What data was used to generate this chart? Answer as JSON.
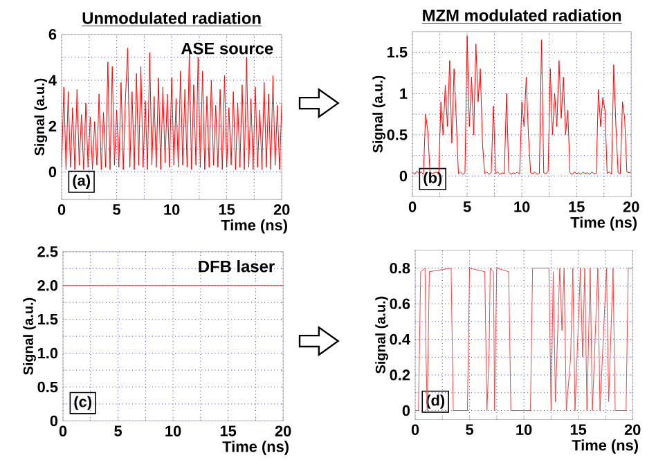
{
  "chart_data": [
    {
      "type": "line",
      "title": "Unmodulated radiation",
      "xlabel": "Time (ns)",
      "ylabel": "Signal (a.u.)",
      "annotations": [
        "ASE source",
        "(a)"
      ],
      "x": [
        0,
        0.2,
        0.4,
        0.6,
        0.8,
        1,
        1.2,
        1.4,
        1.6,
        1.8,
        2,
        2.2,
        2.4,
        2.6,
        2.8,
        3,
        3.2,
        3.4,
        3.6,
        3.8,
        4,
        4.2,
        4.4,
        4.6,
        4.8,
        5,
        5.2,
        5.4,
        5.6,
        5.8,
        6,
        6.2,
        6.4,
        6.6,
        6.8,
        7,
        7.2,
        7.4,
        7.6,
        7.8,
        8,
        8.2,
        8.4,
        8.6,
        8.8,
        9,
        9.2,
        9.4,
        9.6,
        9.8,
        10,
        10.2,
        10.4,
        10.6,
        10.8,
        11,
        11.2,
        11.4,
        11.6,
        11.8,
        12,
        12.2,
        12.4,
        12.6,
        12.8,
        13,
        13.2,
        13.4,
        13.6,
        13.8,
        14,
        14.2,
        14.4,
        14.6,
        14.8,
        15,
        15.2,
        15.4,
        15.6,
        15.8,
        16,
        16.2,
        16.4,
        16.6,
        16.8,
        17,
        17.2,
        17.4,
        17.6,
        17.8,
        18,
        18.2,
        18.4,
        18.6,
        18.8,
        19,
        19.2,
        19.4,
        19.6,
        19.8,
        20
      ],
      "series": [
        {
          "color": "#ff0000",
          "values": [
            0.2,
            3.7,
            0.1,
            3.5,
            0.2,
            2.8,
            0.1,
            3.6,
            0.3,
            2.5,
            0.1,
            3.0,
            0.2,
            2.4,
            0.1,
            2.2,
            0.3,
            3.4,
            0.1,
            2.6,
            0.2,
            4.8,
            0.1,
            4.6,
            0.3,
            2.7,
            0.2,
            3.9,
            0.1,
            3.2,
            5.4,
            0.2,
            3.5,
            0.1,
            4.3,
            0.3,
            4.6,
            0.2,
            3.1,
            0.1,
            5.2,
            0.3,
            3.3,
            0.2,
            4.1,
            0.1,
            3.7,
            0.4,
            3.4,
            0.2,
            4.1,
            0.3,
            3.2,
            0.2,
            4.4,
            0.3,
            3.6,
            0.2,
            5.2,
            0.1,
            3.8,
            0.3,
            5.0,
            0.2,
            4.4,
            0.1,
            3.3,
            0.2,
            4.0,
            0.3,
            2.9,
            0.2,
            3.6,
            0.1,
            4.2,
            0.2,
            2.8,
            0.3,
            3.5,
            0.1,
            3.0,
            0.2,
            3.8,
            0.1,
            5.0,
            0.2,
            3.2,
            0.1,
            3.7,
            0.2,
            2.7,
            0.1,
            3.9,
            0.2,
            3.4,
            0.1,
            4.2,
            0.3,
            2.9,
            0.1,
            3.0
          ]
        }
      ],
      "xlim": [
        0,
        20
      ],
      "ylim": [
        -1.2,
        6
      ],
      "xticks": [
        0,
        {
          "value": 2.5,
          "label": null
        },
        5,
        {
          "value": 7.5,
          "label": null
        },
        10,
        {
          "value": 12.5,
          "label": null
        },
        15,
        {
          "value": 17.5,
          "label": null
        },
        20
      ],
      "yticks": [
        0,
        {
          "value": 1,
          "label": null
        },
        2,
        {
          "value": 3,
          "label": null
        },
        4,
        {
          "value": 5,
          "label": null
        },
        6
      ],
      "grid": true
    },
    {
      "type": "line",
      "title": "MZM modulated radiation",
      "xlabel": "Time (ns)",
      "ylabel": "Signal (a.u.)",
      "annotations": [
        "(b)"
      ],
      "x": [
        0,
        0.2,
        0.4,
        0.6,
        0.8,
        1,
        1.2,
        1.4,
        1.6,
        1.8,
        2,
        2.2,
        2.4,
        2.6,
        2.8,
        3,
        3.2,
        3.4,
        3.6,
        3.8,
        4,
        4.2,
        4.4,
        4.6,
        4.8,
        5,
        5.2,
        5.4,
        5.6,
        5.8,
        6,
        6.2,
        6.4,
        6.6,
        6.8,
        7,
        7.2,
        7.4,
        7.6,
        7.8,
        8,
        8.2,
        8.4,
        8.6,
        8.8,
        9,
        9.2,
        9.4,
        9.6,
        9.8,
        10,
        10.2,
        10.4,
        10.6,
        10.8,
        11,
        11.2,
        11.4,
        11.6,
        11.8,
        12,
        12.2,
        12.4,
        12.6,
        12.8,
        13,
        13.2,
        13.4,
        13.6,
        13.8,
        14,
        14.2,
        14.4,
        14.6,
        14.8,
        15,
        15.2,
        15.4,
        15.6,
        15.8,
        16,
        16.2,
        16.4,
        16.6,
        16.8,
        17,
        17.2,
        17.4,
        17.6,
        17.8,
        18,
        18.2,
        18.4,
        18.6,
        18.8,
        19,
        19.2,
        19.4,
        19.6,
        19.8,
        20
      ],
      "series": [
        {
          "color": "#ff0000",
          "values": [
            0.05,
            0.02,
            0.06,
            0.03,
            0.05,
            0.02,
            0.75,
            0.55,
            0.05,
            0.03,
            0.04,
            0.05,
            0.02,
            0.9,
            0.5,
            1.1,
            0.6,
            1.4,
            0.4,
            1.3,
            0.7,
            0.03,
            0.05,
            0.02,
            0.04,
            1.7,
            0.6,
            1.2,
            0.5,
            1.6,
            0.9,
            1.3,
            0.4,
            0.03,
            0.05,
            0.02,
            0.04,
            0.85,
            0.03,
            0.05,
            0.02,
            0.04,
            0.03,
            1.0,
            0.05,
            0.02,
            0.04,
            0.03,
            0.05,
            0.02,
            0.9,
            0.6,
            1.2,
            0.5,
            0.04,
            0.03,
            0.05,
            0.02,
            0.03,
            1.65,
            0.04,
            0.03,
            0.05,
            1.3,
            0.5,
            1.0,
            0.6,
            1.4,
            0.7,
            1.2,
            0.5,
            0.8,
            0.04,
            0.02,
            0.05,
            0.03,
            0.04,
            0.02,
            0.05,
            0.03,
            0.04,
            0.02,
            0.05,
            0.03,
            0.03,
            1.05,
            0.6,
            0.95,
            0.8,
            0.03,
            0.05,
            0.02,
            1.35,
            0.6,
            0.04,
            0.03,
            0.9,
            0.7,
            0.05,
            0.04,
            0.05
          ]
        }
      ],
      "xlim": [
        0,
        20
      ],
      "ylim": [
        -0.25,
        1.75
      ],
      "xticks": [
        0,
        {
          "value": 2.5,
          "label": null
        },
        5,
        {
          "value": 7.5,
          "label": null
        },
        10,
        {
          "value": 12.5,
          "label": null
        },
        15,
        {
          "value": 17.5,
          "label": null
        },
        20
      ],
      "yticks": [
        0,
        {
          "value": 0.25,
          "label": null
        },
        0.5,
        {
          "value": 0.75,
          "label": null
        },
        1,
        {
          "value": 1.25,
          "label": null
        },
        1.5
      ],
      "grid": true
    },
    {
      "type": "line",
      "xlabel": "Time (ns)",
      "ylabel": "Signal (a.u.)",
      "annotations": [
        "DFB laser",
        "(c)"
      ],
      "x": [
        0,
        20
      ],
      "series": [
        {
          "color": "#e8303a",
          "values": [
            2,
            2
          ]
        }
      ],
      "xlim": [
        0,
        20
      ],
      "ylim": [
        0,
        2.5
      ],
      "xticks": [
        0,
        {
          "value": 2.5,
          "label": null
        },
        5,
        {
          "value": 7.5,
          "label": null
        },
        10,
        {
          "value": 12.5,
          "label": null
        },
        15,
        {
          "value": 17.5,
          "label": null
        },
        20
      ],
      "yticks": [
        0,
        {
          "value": 0.25,
          "label": null
        },
        {
          "value": 0.5,
          "label": "0.5"
        },
        {
          "value": 0.75,
          "label": null
        },
        {
          "value": 1,
          "label": "1.0"
        },
        {
          "value": 1.25,
          "label": null
        },
        {
          "value": 1.5,
          "label": "1.5"
        },
        {
          "value": 1.75,
          "label": null
        },
        {
          "value": 2,
          "label": "2.0"
        },
        {
          "value": 2.25,
          "label": null
        },
        {
          "value": 2.5,
          "label": "2.5"
        }
      ],
      "grid": true
    },
    {
      "type": "line",
      "xlabel": "Time (ns)",
      "ylabel": "Signal (a.u.)",
      "annotations": [
        "(d)"
      ],
      "x": [
        0,
        0.3,
        0.5,
        0.9,
        1.0,
        1.1,
        1.3,
        3.3,
        3.5,
        4.8,
        5,
        6.4,
        6.6,
        6.8,
        6.9,
        7.2,
        7.3,
        7.5,
        8.6,
        8.8,
        10.6,
        10.8,
        12.3,
        12.5,
        12.7,
        12.9,
        13.3,
        13.5,
        13.7,
        13.9,
        14.3,
        14.5,
        14.7,
        15.2,
        15.4,
        15.6,
        15.8,
        16.1,
        16.3,
        16.8,
        17,
        17.6,
        17.8,
        18.2,
        18.4,
        19.4,
        19.6,
        20
      ],
      "series": [
        {
          "color": "#f04848",
          "values": [
            0,
            0,
            0.78,
            0.8,
            0.3,
            0,
            0.78,
            0.8,
            0,
            0,
            0.8,
            0.78,
            0,
            0.33,
            0.8,
            0.78,
            0,
            0.8,
            0.78,
            0,
            0,
            0.8,
            0.8,
            0,
            0.78,
            0.05,
            0.8,
            0.45,
            0.8,
            0,
            0.3,
            0.8,
            0,
            0.8,
            0.3,
            0.8,
            0,
            0.8,
            0,
            0.8,
            0,
            0.8,
            0.05,
            0.8,
            0,
            0,
            0.8,
            0.8
          ]
        }
      ],
      "xlim": [
        0,
        20
      ],
      "ylim": [
        -0.05,
        0.9
      ],
      "xticks": [
        0,
        {
          "value": 2.5,
          "label": null
        },
        5,
        {
          "value": 7.5,
          "label": null
        },
        10,
        {
          "value": 12.5,
          "label": null
        },
        15,
        {
          "value": 17.5,
          "label": null
        },
        20
      ],
      "yticks": [
        0,
        {
          "value": 0.1,
          "label": null
        },
        0.2,
        {
          "value": 0.3,
          "label": null
        },
        0.4,
        {
          "value": 0.5,
          "label": null
        },
        0.6,
        {
          "value": 0.7,
          "label": null
        },
        0.8
      ],
      "grid": true
    }
  ]
}
